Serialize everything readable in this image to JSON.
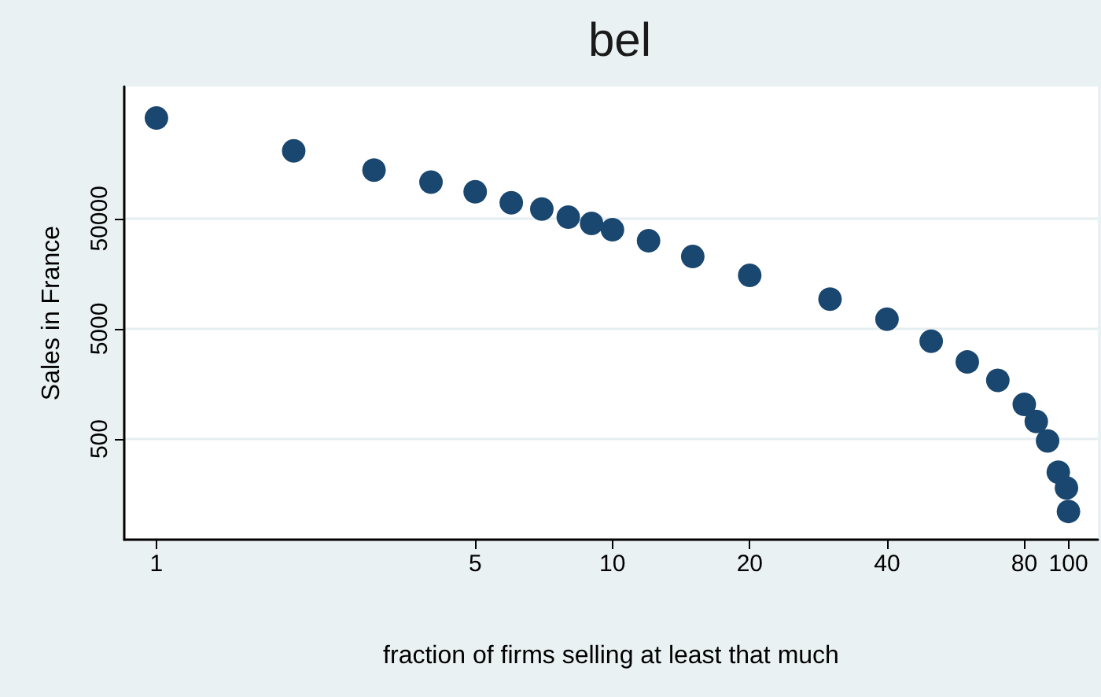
{
  "chart_data": {
    "type": "scatter",
    "title": "bel",
    "xlabel": "fraction of firms selling at least that much",
    "ylabel": "Sales in France",
    "x": [
      1,
      2,
      3,
      4,
      5,
      6,
      7,
      8,
      9,
      10,
      12,
      15,
      20,
      30,
      40,
      50,
      60,
      70,
      80,
      85,
      90,
      95,
      99,
      100
    ],
    "values": [
      410000,
      206000,
      138000,
      107000,
      87500,
      69500,
      61000,
      51600,
      45300,
      39700,
      31500,
      22700,
      15300,
      9300,
      6100,
      3850,
      2500,
      1700,
      1030,
      720,
      480,
      250,
      180,
      110
    ],
    "color": "#1a476f",
    "marker": "circle",
    "log": "xy",
    "grid": "y",
    "xlim": [
      0.85,
      116
    ],
    "ylim": [
      61,
      790000
    ],
    "xticks": [
      1,
      5,
      10,
      20,
      40,
      80,
      100
    ],
    "yticks": [
      500,
      5000,
      50000
    ]
  }
}
